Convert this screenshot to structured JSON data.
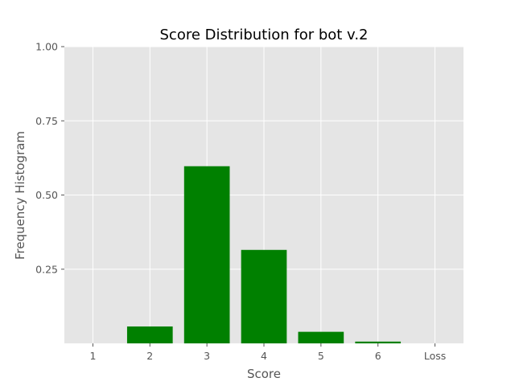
{
  "chart_data": {
    "type": "bar",
    "title": "Score Distribution for bot v.2",
    "xlabel": "Score",
    "ylabel": "Frequency Histogram",
    "categories": [
      "1",
      "2",
      "3",
      "4",
      "5",
      "6",
      "Loss"
    ],
    "values": [
      0.0,
      0.057,
      0.597,
      0.315,
      0.039,
      0.006,
      0.0
    ],
    "ylim": [
      0,
      1
    ],
    "yticks": [
      0.25,
      0.5,
      0.75,
      1.0
    ],
    "ytick_labels": [
      "0.25",
      "0.50",
      "0.75",
      "1.00"
    ],
    "grid": true,
    "bar_color": "#008000",
    "plot_background": "#e5e5e5",
    "grid_color": "#ffffff"
  }
}
